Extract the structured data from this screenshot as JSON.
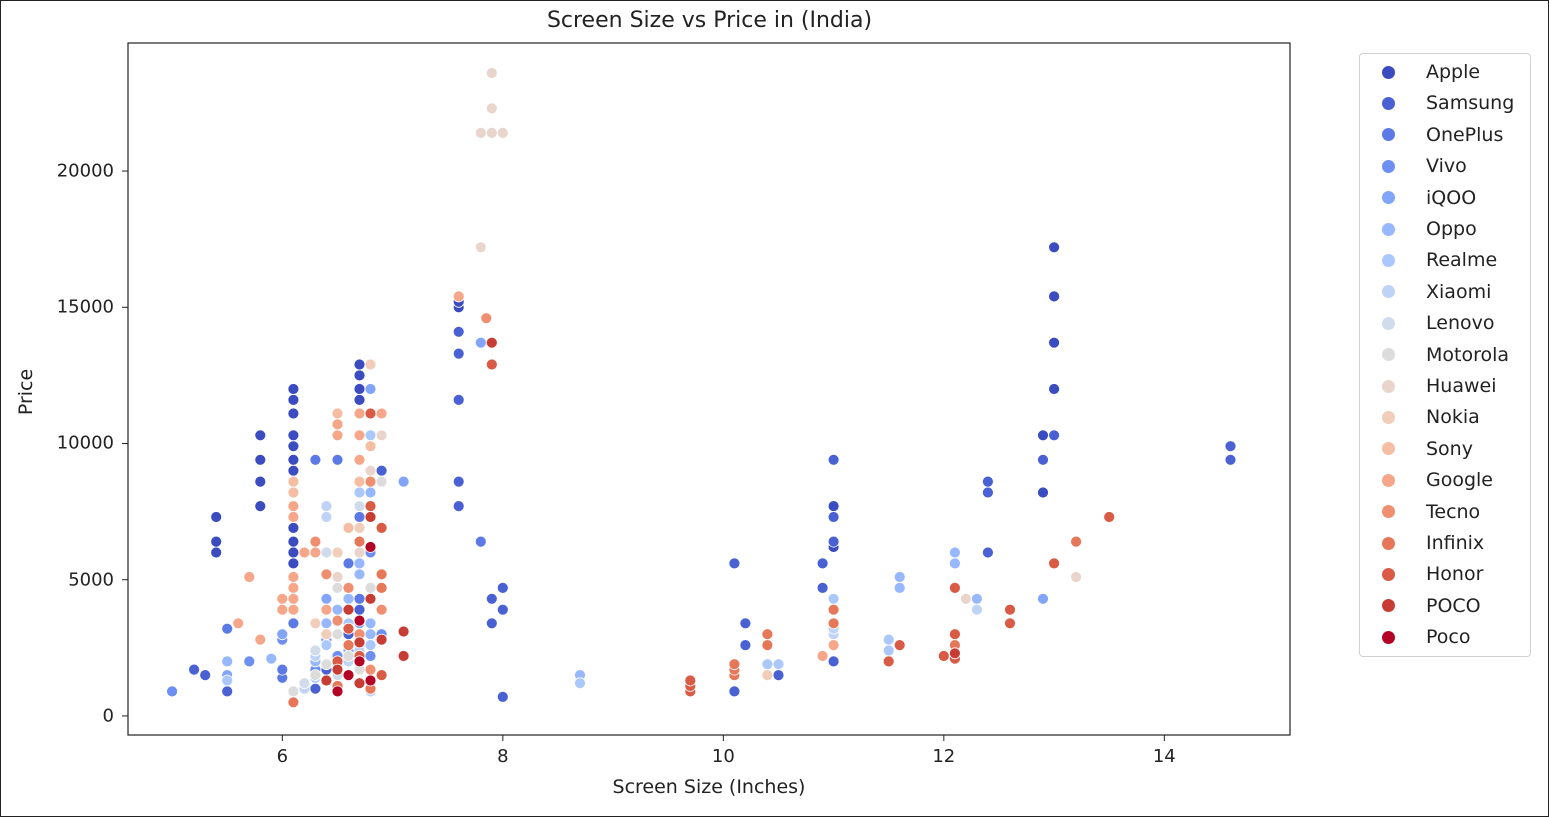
{
  "chart_data": {
    "type": "scatter",
    "title": "Screen Size vs Price in (India)",
    "xlabel": "Screen Size (Inches)",
    "ylabel": "Price",
    "xlim": [
      4.6,
      15.14
    ],
    "ylim": [
      -700,
      24700
    ],
    "x_ticks": [
      6,
      8,
      10,
      12,
      14
    ],
    "y_ticks": [
      0,
      5000,
      10000,
      15000,
      20000
    ],
    "legend_position": "outside-right",
    "series": [
      {
        "name": "Apple",
        "color": "#3b4cc0",
        "points": [
          [
            5.4,
            6000
          ],
          [
            5.4,
            6400
          ],
          [
            5.4,
            7300
          ],
          [
            5.8,
            7700
          ],
          [
            5.8,
            8600
          ],
          [
            5.8,
            9400
          ],
          [
            5.8,
            10300
          ],
          [
            6.1,
            5600
          ],
          [
            6.1,
            6000
          ],
          [
            6.1,
            6400
          ],
          [
            6.1,
            6900
          ],
          [
            6.1,
            7300
          ],
          [
            6.1,
            7700
          ],
          [
            6.1,
            8200
          ],
          [
            6.1,
            8600
          ],
          [
            6.1,
            9000
          ],
          [
            6.1,
            9400
          ],
          [
            6.1,
            9900
          ],
          [
            6.1,
            10300
          ],
          [
            6.1,
            11100
          ],
          [
            6.1,
            11600
          ],
          [
            6.1,
            12000
          ],
          [
            6.7,
            6900
          ],
          [
            6.7,
            7700
          ],
          [
            6.7,
            8600
          ],
          [
            6.7,
            9400
          ],
          [
            6.7,
            10300
          ],
          [
            6.7,
            11100
          ],
          [
            6.7,
            11600
          ],
          [
            6.7,
            12000
          ],
          [
            6.7,
            12500
          ],
          [
            6.7,
            12900
          ],
          [
            7.6,
            15000
          ],
          [
            7.6,
            15200
          ],
          [
            11.0,
            6200
          ],
          [
            11.0,
            7700
          ],
          [
            12.9,
            8200
          ],
          [
            12.9,
            10300
          ],
          [
            13.0,
            12000
          ],
          [
            13.0,
            13700
          ],
          [
            13.0,
            15400
          ],
          [
            13.0,
            17200
          ]
        ]
      },
      {
        "name": "Samsung",
        "color": "#4961d2",
        "points": [
          [
            5.2,
            1700
          ],
          [
            5.3,
            1500
          ],
          [
            5.5,
            900
          ],
          [
            6.3,
            1000
          ],
          [
            6.4,
            1700
          ],
          [
            6.5,
            2200
          ],
          [
            6.6,
            2600
          ],
          [
            6.6,
            3000
          ],
          [
            6.7,
            3900
          ],
          [
            6.8,
            4300
          ],
          [
            6.9,
            9000
          ],
          [
            7.6,
            7700
          ],
          [
            7.6,
            8600
          ],
          [
            7.6,
            11600
          ],
          [
            7.6,
            13300
          ],
          [
            7.6,
            14100
          ],
          [
            7.9,
            3400
          ],
          [
            7.9,
            4300
          ],
          [
            8.0,
            700
          ],
          [
            8.0,
            3900
          ],
          [
            8.0,
            4700
          ],
          [
            10.1,
            900
          ],
          [
            10.1,
            5600
          ],
          [
            10.2,
            2600
          ],
          [
            10.2,
            3400
          ],
          [
            10.5,
            1500
          ],
          [
            10.9,
            4700
          ],
          [
            10.9,
            5600
          ],
          [
            11.0,
            2000
          ],
          [
            11.0,
            6400
          ],
          [
            11.0,
            7300
          ],
          [
            11.0,
            9400
          ],
          [
            12.4,
            6000
          ],
          [
            12.4,
            8200
          ],
          [
            12.4,
            8600
          ],
          [
            12.9,
            9400
          ],
          [
            13.0,
            10300
          ],
          [
            14.6,
            9400
          ],
          [
            14.6,
            9900
          ]
        ]
      },
      {
        "name": "OnePlus",
        "color": "#5b7ae5",
        "points": [
          [
            5.5,
            3200
          ],
          [
            6.0,
            1400
          ],
          [
            6.0,
            1700
          ],
          [
            6.1,
            3400
          ],
          [
            6.3,
            9400
          ],
          [
            6.5,
            9400
          ],
          [
            6.6,
            5600
          ],
          [
            6.7,
            4300
          ],
          [
            6.7,
            7300
          ],
          [
            7.8,
            6400
          ]
        ]
      },
      {
        "name": "Vivo",
        "color": "#6d8ff2",
        "points": [
          [
            5.0,
            900
          ],
          [
            5.5,
            1300
          ],
          [
            5.7,
            2000
          ],
          [
            6.0,
            2800
          ],
          [
            6.3,
            1700
          ],
          [
            6.4,
            2800
          ],
          [
            6.5,
            2200
          ],
          [
            6.6,
            1500
          ],
          [
            6.7,
            2600
          ],
          [
            6.8,
            2200
          ],
          [
            6.8,
            6000
          ],
          [
            6.9,
            3000
          ]
        ]
      },
      {
        "name": "iQOO",
        "color": "#82a5fa",
        "points": [
          [
            5.5,
            1500
          ],
          [
            6.0,
            3000
          ],
          [
            6.4,
            4300
          ],
          [
            6.5,
            3000
          ],
          [
            6.6,
            2400
          ],
          [
            6.7,
            3400
          ],
          [
            6.8,
            4700
          ],
          [
            6.8,
            12000
          ],
          [
            7.1,
            8600
          ],
          [
            7.8,
            13700
          ],
          [
            12.9,
            4300
          ]
        ]
      },
      {
        "name": "Oppo",
        "color": "#97b8ff",
        "points": [
          [
            5.5,
            2000
          ],
          [
            5.9,
            2100
          ],
          [
            6.3,
            2000
          ],
          [
            6.4,
            3400
          ],
          [
            6.5,
            3900
          ],
          [
            6.6,
            4300
          ],
          [
            6.7,
            5200
          ],
          [
            6.7,
            5600
          ],
          [
            6.8,
            3000
          ],
          [
            6.8,
            3400
          ],
          [
            6.8,
            8200
          ],
          [
            8.7,
            1500
          ],
          [
            11.6,
            4700
          ],
          [
            11.6,
            5100
          ],
          [
            12.1,
            5600
          ],
          [
            12.1,
            6000
          ],
          [
            12.3,
            4300
          ]
        ]
      },
      {
        "name": "Realme",
        "color": "#abc8fd",
        "points": [
          [
            5.5,
            1300
          ],
          [
            6.3,
            1400
          ],
          [
            6.4,
            2600
          ],
          [
            6.5,
            1900
          ],
          [
            6.6,
            3400
          ],
          [
            6.7,
            6400
          ],
          [
            6.7,
            8200
          ],
          [
            6.8,
            2600
          ],
          [
            6.8,
            10300
          ],
          [
            8.7,
            1200
          ],
          [
            10.4,
            1900
          ],
          [
            10.5,
            1900
          ],
          [
            11.0,
            4300
          ],
          [
            11.5,
            2400
          ],
          [
            11.5,
            2800
          ]
        ]
      },
      {
        "name": "Xiaomi",
        "color": "#bfd3f6",
        "points": [
          [
            6.2,
            1000
          ],
          [
            6.3,
            2200
          ],
          [
            6.4,
            3000
          ],
          [
            6.4,
            7300
          ],
          [
            6.4,
            7700
          ],
          [
            6.5,
            1100
          ],
          [
            6.6,
            2000
          ],
          [
            6.6,
            4700
          ],
          [
            6.7,
            2400
          ],
          [
            6.8,
            900
          ],
          [
            6.8,
            12900
          ],
          [
            11.0,
            3000
          ],
          [
            11.0,
            3200
          ],
          [
            12.3,
            3900
          ]
        ]
      },
      {
        "name": "Lenovo",
        "color": "#d0dcec",
        "points": [
          [
            6.2,
            1200
          ],
          [
            6.3,
            2400
          ],
          [
            6.4,
            6000
          ],
          [
            6.5,
            1500
          ],
          [
            6.6,
            6900
          ],
          [
            6.7,
            3000
          ],
          [
            6.7,
            7700
          ]
        ]
      },
      {
        "name": "Motorola",
        "color": "#dddcdc",
        "points": [
          [
            6.1,
            900
          ],
          [
            6.3,
            1500
          ],
          [
            6.4,
            1900
          ],
          [
            6.5,
            3000
          ],
          [
            6.5,
            4700
          ],
          [
            6.6,
            2200
          ],
          [
            6.7,
            1700
          ],
          [
            6.8,
            4700
          ],
          [
            6.9,
            8600
          ]
        ]
      },
      {
        "name": "Huawei",
        "color": "#e9d5cb",
        "points": [
          [
            6.5,
            5100
          ],
          [
            6.7,
            6000
          ],
          [
            6.8,
            9000
          ],
          [
            6.9,
            10300
          ],
          [
            7.8,
            17200
          ],
          [
            7.8,
            21400
          ],
          [
            7.9,
            21400
          ],
          [
            7.9,
            22300
          ],
          [
            7.9,
            23600
          ],
          [
            8.0,
            21400
          ],
          [
            12.2,
            4300
          ],
          [
            13.2,
            5100
          ]
        ]
      },
      {
        "name": "Nokia",
        "color": "#f1cdba",
        "points": [
          [
            6.3,
            3400
          ],
          [
            6.4,
            3000
          ],
          [
            6.5,
            6000
          ],
          [
            6.7,
            6900
          ],
          [
            6.8,
            12900
          ],
          [
            6.9,
            11100
          ],
          [
            10.4,
            1500
          ]
        ]
      },
      {
        "name": "Sony",
        "color": "#f5bda2",
        "points": [
          [
            6.1,
            8200
          ],
          [
            6.1,
            8600
          ],
          [
            6.5,
            11100
          ],
          [
            6.6,
            6900
          ],
          [
            6.7,
            8600
          ],
          [
            6.8,
            9900
          ]
        ]
      },
      {
        "name": "Google",
        "color": "#f6a789",
        "points": [
          [
            5.6,
            3400
          ],
          [
            5.7,
            5100
          ],
          [
            5.8,
            2800
          ],
          [
            6.0,
            3900
          ],
          [
            6.0,
            4300
          ],
          [
            6.1,
            3900
          ],
          [
            6.1,
            4300
          ],
          [
            6.1,
            4700
          ],
          [
            6.1,
            5100
          ],
          [
            6.1,
            7300
          ],
          [
            6.1,
            7700
          ],
          [
            6.2,
            6000
          ],
          [
            6.3,
            6000
          ],
          [
            6.4,
            3900
          ],
          [
            6.5,
            10300
          ],
          [
            6.5,
            10700
          ],
          [
            6.7,
            9400
          ],
          [
            6.7,
            10300
          ],
          [
            6.7,
            11100
          ],
          [
            6.8,
            7300
          ],
          [
            6.9,
            11100
          ],
          [
            7.6,
            15400
          ],
          [
            10.9,
            2200
          ],
          [
            11.0,
            2600
          ]
        ]
      },
      {
        "name": "Tecno",
        "color": "#f08f70",
        "points": [
          [
            6.3,
            6400
          ],
          [
            6.4,
            5200
          ],
          [
            6.5,
            3500
          ],
          [
            6.6,
            4700
          ],
          [
            6.7,
            3000
          ],
          [
            6.8,
            1700
          ],
          [
            6.8,
            8600
          ],
          [
            6.9,
            3900
          ],
          [
            7.85,
            14600
          ]
        ]
      },
      {
        "name": "Infinix",
        "color": "#e67758",
        "points": [
          [
            6.1,
            500
          ],
          [
            6.5,
            1100
          ],
          [
            6.6,
            2600
          ],
          [
            6.7,
            6400
          ],
          [
            6.8,
            1000
          ],
          [
            6.9,
            4700
          ],
          [
            6.9,
            5200
          ],
          [
            10.1,
            1500
          ],
          [
            10.1,
            1700
          ],
          [
            10.1,
            1900
          ],
          [
            10.4,
            2600
          ],
          [
            10.4,
            3000
          ],
          [
            11.0,
            3900
          ],
          [
            11.0,
            3400
          ],
          [
            12.1,
            2600
          ],
          [
            13.2,
            6400
          ]
        ]
      },
      {
        "name": "Honor",
        "color": "#d95b45",
        "points": [
          [
            6.5,
            2000
          ],
          [
            6.6,
            3200
          ],
          [
            6.7,
            2200
          ],
          [
            6.8,
            7700
          ],
          [
            6.8,
            11100
          ],
          [
            6.9,
            1500
          ],
          [
            6.9,
            6900
          ],
          [
            7.9,
            12900
          ],
          [
            9.7,
            900
          ],
          [
            9.7,
            1100
          ],
          [
            9.7,
            1300
          ],
          [
            11.5,
            2000
          ],
          [
            11.6,
            2600
          ],
          [
            12.0,
            2200
          ],
          [
            12.1,
            2100
          ],
          [
            12.1,
            3000
          ],
          [
            12.1,
            4700
          ],
          [
            12.6,
            3400
          ],
          [
            12.6,
            3900
          ],
          [
            13.0,
            5600
          ],
          [
            13.5,
            7300
          ]
        ]
      },
      {
        "name": "POCO",
        "color": "#c83d33",
        "points": [
          [
            6.4,
            1300
          ],
          [
            6.5,
            1700
          ],
          [
            6.6,
            3900
          ],
          [
            6.7,
            1200
          ],
          [
            6.7,
            2700
          ],
          [
            6.8,
            7300
          ],
          [
            6.8,
            4300
          ],
          [
            6.9,
            2800
          ],
          [
            7.1,
            2200
          ],
          [
            7.1,
            3100
          ],
          [
            7.9,
            13700
          ],
          [
            12.1,
            2300
          ]
        ]
      },
      {
        "name": "Poco",
        "color": "#b40426",
        "points": [
          [
            6.5,
            900
          ],
          [
            6.6,
            1500
          ],
          [
            6.7,
            2000
          ],
          [
            6.7,
            3500
          ],
          [
            6.8,
            6200
          ],
          [
            6.8,
            1300
          ]
        ]
      }
    ]
  }
}
